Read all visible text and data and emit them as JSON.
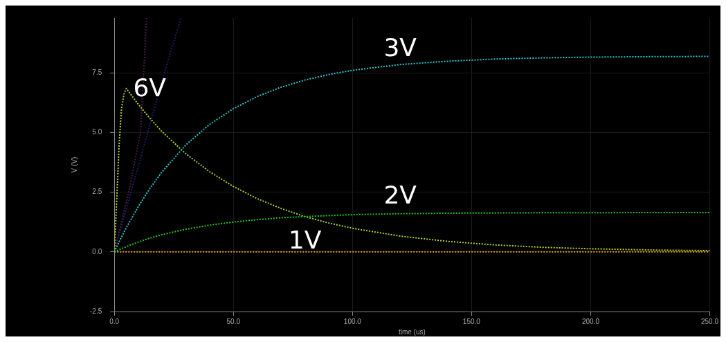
{
  "chart_data": {
    "type": "line",
    "xlabel": "time (us)",
    "ylabel": "V (V)",
    "x": [
      0,
      2,
      5,
      10,
      15,
      20,
      30,
      40,
      50,
      60,
      70,
      80,
      90,
      100,
      120,
      140,
      160,
      180,
      200,
      225,
      250
    ],
    "xlim": [
      0,
      250
    ],
    "xticks": [
      {
        "value": 0,
        "label": "0.0"
      },
      {
        "value": 50,
        "label": "50.0"
      },
      {
        "value": 100,
        "label": "100.0"
      },
      {
        "value": 150,
        "label": "150.0"
      },
      {
        "value": 200,
        "label": "200.0"
      },
      {
        "value": 250,
        "label": "250.0"
      }
    ],
    "ylim": [
      -2.5,
      9.8
    ],
    "yticks": [
      -2.5,
      {
        "value": 0,
        "label": "0.0"
      },
      2.5,
      {
        "value": 5,
        "label": "5.0"
      },
      7.5
    ],
    "grid": true,
    "legend": false,
    "marker": "none",
    "line_style": "dotted",
    "series": [
      {
        "name": "3V",
        "color": "#2ec8d0",
        "values": [
          0,
          0.42,
          1.01,
          1.89,
          2.67,
          3.35,
          4.48,
          5.34,
          6.0,
          6.51,
          6.9,
          7.2,
          7.43,
          7.61,
          7.85,
          7.99,
          8.08,
          8.13,
          8.16,
          8.18,
          8.19
        ]
      },
      {
        "name": "2V",
        "color": "#22c822",
        "values": [
          0,
          0.09,
          0.22,
          0.41,
          0.58,
          0.72,
          0.95,
          1.12,
          1.25,
          1.35,
          1.43,
          1.48,
          1.52,
          1.56,
          1.6,
          1.62,
          1.63,
          1.64,
          1.64,
          1.65,
          1.65
        ]
      },
      {
        "name": "1V",
        "color": "#e8a020",
        "values": [
          0,
          0,
          0,
          0,
          0,
          0,
          0,
          0,
          0,
          0,
          0,
          0,
          0,
          0,
          0,
          0,
          0,
          0,
          0,
          0,
          0
        ]
      },
      {
        "name": "6V",
        "color": "#a8d82a",
        "x": [
          0,
          1,
          2,
          3,
          4,
          5,
          10,
          15,
          20,
          30,
          40,
          50,
          60,
          70,
          80,
          90,
          100,
          120,
          140,
          160,
          180,
          200,
          225,
          250
        ],
        "values": [
          0,
          2.2,
          4.5,
          6.0,
          6.6,
          6.85,
          6.19,
          5.59,
          5.04,
          4.11,
          3.36,
          2.74,
          2.23,
          1.82,
          1.48,
          1.21,
          0.99,
          0.66,
          0.44,
          0.29,
          0.19,
          0.13,
          0.08,
          0.05
        ]
      },
      {
        "color": "#4a1a4a",
        "x": [
          0,
          6,
          11,
          13.5
        ],
        "values": [
          0,
          2.5,
          5,
          9.8
        ]
      },
      {
        "color": "#1c1c66",
        "x": [
          0,
          14,
          21,
          28
        ],
        "values": [
          0,
          5,
          7.5,
          9.8
        ]
      }
    ]
  }
}
